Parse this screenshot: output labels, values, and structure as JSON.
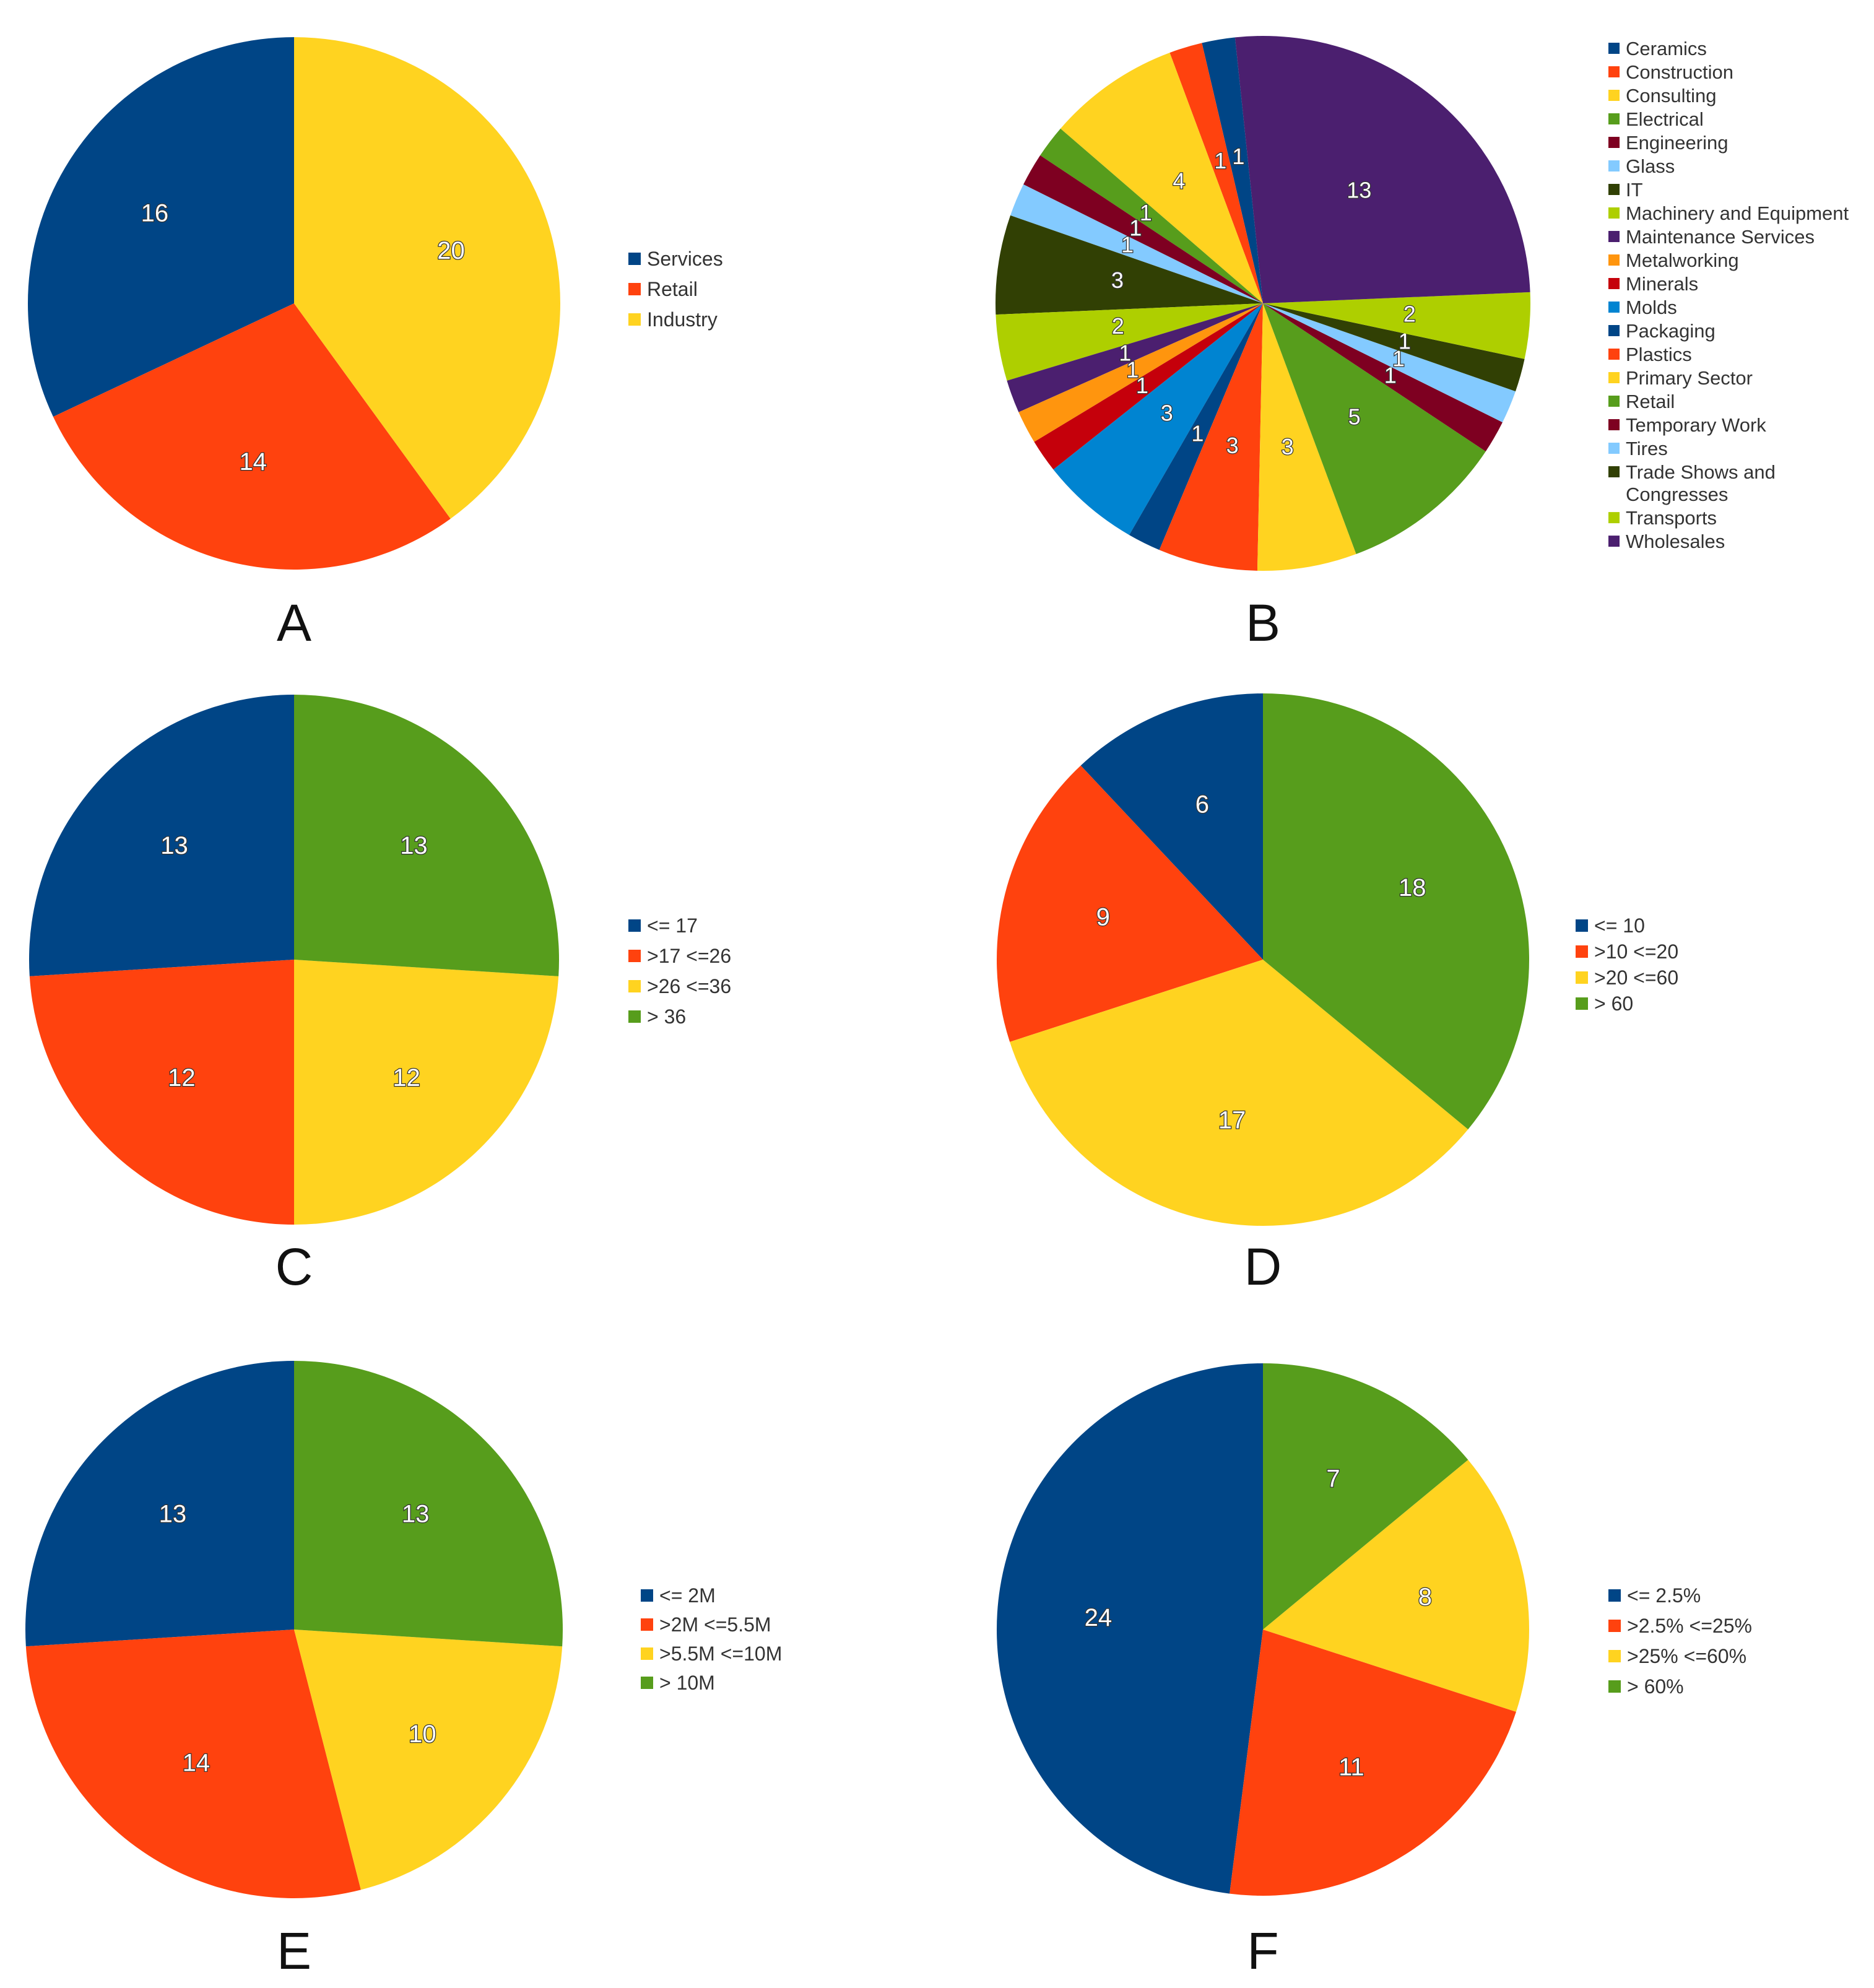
{
  "colors": {
    "blue": "#004586",
    "orange": "#ff420e",
    "yellow": "#ffd320",
    "green": "#579d1c",
    "maroon": "#7e0021",
    "lightblue": "#83caff",
    "darkgreen": "#314004",
    "lime": "#aecf00",
    "purple": "#4b1f6f",
    "amber": "#ff950e",
    "red": "#c5000b",
    "skyblue": "#0084d1"
  },
  "chart_data": [
    {
      "id": "A",
      "type": "pie",
      "caption": "A",
      "slices": [
        {
          "label": "Services",
          "value": 16,
          "color": "#004586"
        },
        {
          "label": "Retail",
          "value": 14,
          "color": "#ff420e"
        },
        {
          "label": "Industry",
          "value": 20,
          "color": "#ffd320"
        }
      ],
      "legend": [
        {
          "label": "Services",
          "color": "#004586"
        },
        {
          "label": "Retail",
          "color": "#ff420e"
        },
        {
          "label": "Industry",
          "color": "#ffd320"
        }
      ]
    },
    {
      "id": "B",
      "type": "pie",
      "caption": "B",
      "slices": [
        {
          "label": "Ceramics",
          "value": 1,
          "color": "#004586"
        },
        {
          "label": "Construction",
          "value": 1,
          "color": "#ff420e"
        },
        {
          "label": "Consulting",
          "value": 4,
          "color": "#ffd320"
        },
        {
          "label": "Electrical",
          "value": 1,
          "color": "#579d1c"
        },
        {
          "label": "Engineering",
          "value": 1,
          "color": "#7e0021"
        },
        {
          "label": "Glass",
          "value": 1,
          "color": "#83caff"
        },
        {
          "label": "IT",
          "value": 3,
          "color": "#314004"
        },
        {
          "label": "Machinery and Equipment",
          "value": 2,
          "color": "#aecf00"
        },
        {
          "label": "Maintenance Services",
          "value": 1,
          "color": "#4b1f6f"
        },
        {
          "label": "Metalworking",
          "value": 1,
          "color": "#ff950e"
        },
        {
          "label": "Minerals",
          "value": 1,
          "color": "#c5000b"
        },
        {
          "label": "Molds",
          "value": 3,
          "color": "#0084d1"
        },
        {
          "label": "Packaging",
          "value": 1,
          "color": "#004586"
        },
        {
          "label": "Plastics",
          "value": 3,
          "color": "#ff420e"
        },
        {
          "label": "Primary Sector",
          "value": 3,
          "color": "#ffd320"
        },
        {
          "label": "Retail",
          "value": 5,
          "color": "#579d1c"
        },
        {
          "label": "Temporary Work",
          "value": 1,
          "color": "#7e0021"
        },
        {
          "label": "Tires",
          "value": 1,
          "color": "#83caff"
        },
        {
          "label": "Trade Shows and Congresses",
          "value": 1,
          "color": "#314004"
        },
        {
          "label": "Transports",
          "value": 2,
          "color": "#aecf00"
        },
        {
          "label": "Wholesales",
          "value": 13,
          "color": "#4b1f6f"
        }
      ],
      "legend": [
        {
          "label": "Ceramics",
          "color": "#004586"
        },
        {
          "label": "Construction",
          "color": "#ff420e"
        },
        {
          "label": "Consulting",
          "color": "#ffd320"
        },
        {
          "label": "Electrical",
          "color": "#579d1c"
        },
        {
          "label": "Engineering",
          "color": "#7e0021"
        },
        {
          "label": "Glass",
          "color": "#83caff"
        },
        {
          "label": "IT",
          "color": "#314004"
        },
        {
          "label": "Machinery and Equipment",
          "color": "#aecf00"
        },
        {
          "label": "Maintenance Services",
          "color": "#4b1f6f"
        },
        {
          "label": "Metalworking",
          "color": "#ff950e"
        },
        {
          "label": "Minerals",
          "color": "#c5000b"
        },
        {
          "label": "Molds",
          "color": "#0084d1"
        },
        {
          "label": "Packaging",
          "color": "#004586"
        },
        {
          "label": "Plastics",
          "color": "#ff420e"
        },
        {
          "label": "Primary Sector",
          "color": "#ffd320"
        },
        {
          "label": "Retail",
          "color": "#579d1c"
        },
        {
          "label": "Temporary Work",
          "color": "#7e0021"
        },
        {
          "label": "Tires",
          "color": "#83caff"
        },
        {
          "label": "Trade Shows and Congresses",
          "lines": [
            "Trade Shows and",
            "Congresses"
          ],
          "color": "#314004"
        },
        {
          "label": "Transports",
          "color": "#aecf00"
        },
        {
          "label": "Wholesales",
          "color": "#4b1f6f"
        }
      ]
    },
    {
      "id": "C",
      "type": "pie",
      "caption": "C",
      "slices": [
        {
          "label": "<= 17",
          "value": 13,
          "color": "#004586"
        },
        {
          "label": ">17 <=26",
          "value": 12,
          "color": "#ff420e"
        },
        {
          "label": ">26 <=36",
          "value": 12,
          "color": "#ffd320"
        },
        {
          "label": "> 36",
          "value": 13,
          "color": "#579d1c"
        }
      ],
      "legend": [
        {
          "label": "<= 17",
          "color": "#004586"
        },
        {
          "label": ">17 <=26",
          "color": "#ff420e"
        },
        {
          "label": ">26 <=36",
          "color": "#ffd320"
        },
        {
          "label": "> 36",
          "color": "#579d1c"
        }
      ]
    },
    {
      "id": "D",
      "type": "pie",
      "caption": "D",
      "slices": [
        {
          "label": "<= 10",
          "value": 6,
          "color": "#004586"
        },
        {
          "label": ">10 <=20",
          "value": 9,
          "color": "#ff420e"
        },
        {
          "label": ">20 <=60",
          "value": 17,
          "color": "#ffd320"
        },
        {
          "label": "> 60",
          "value": 18,
          "color": "#579d1c"
        }
      ],
      "legend": [
        {
          "label": "<= 10",
          "color": "#004586"
        },
        {
          "label": ">10 <=20",
          "color": "#ff420e"
        },
        {
          "label": ">20 <=60",
          "color": "#ffd320"
        },
        {
          "label": "> 60",
          "color": "#579d1c"
        }
      ]
    },
    {
      "id": "E",
      "type": "pie",
      "caption": "E",
      "slices": [
        {
          "label": "<= 2M",
          "value": 13,
          "color": "#004586"
        },
        {
          "label": ">2M <=5.5M",
          "value": 14,
          "color": "#ff420e"
        },
        {
          "label": ">5.5M <=10M",
          "value": 10,
          "color": "#ffd320"
        },
        {
          "label": "> 10M",
          "value": 13,
          "color": "#579d1c"
        }
      ],
      "legend": [
        {
          "label": "<= 2M",
          "color": "#004586"
        },
        {
          "label": ">2M <=5.5M",
          "color": "#ff420e"
        },
        {
          "label": ">5.5M <=10M",
          "color": "#ffd320"
        },
        {
          "label": "> 10M",
          "color": "#579d1c"
        }
      ]
    },
    {
      "id": "F",
      "type": "pie",
      "caption": "F",
      "slices": [
        {
          "label": "<= 2.5%",
          "value": 24,
          "color": "#004586"
        },
        {
          "label": ">2.5% <=25%",
          "value": 11,
          "color": "#ff420e"
        },
        {
          "label": ">25% <=60%",
          "value": 8,
          "color": "#ffd320"
        },
        {
          "label": "> 60%",
          "value": 7,
          "color": "#579d1c"
        }
      ],
      "legend": [
        {
          "label": "<= 2.5%",
          "color": "#004586"
        },
        {
          "label": ">2.5% <=25%",
          "color": "#ff420e"
        },
        {
          "label": ">25% <=60%",
          "color": "#ffd320"
        },
        {
          "label": "> 60%",
          "color": "#579d1c"
        }
      ]
    }
  ]
}
